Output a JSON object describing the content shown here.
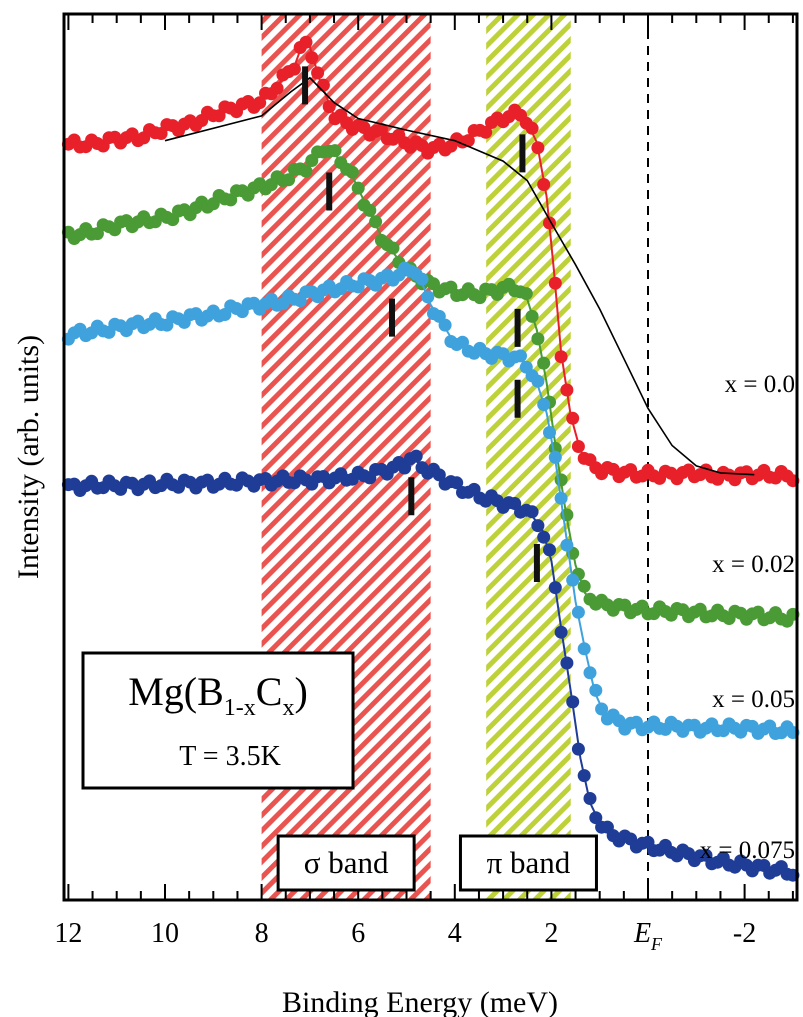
{
  "chart_data": {
    "type": "scatter",
    "xlabel": "Binding Energy (meV)",
    "ylabel": "Intensity (arb. units)",
    "xlim": [
      12,
      -3
    ],
    "x_reversed": true,
    "ylim": [
      0,
      1
    ],
    "grid": false,
    "xtick_labels": [
      {
        "x": 12,
        "label": "12"
      },
      {
        "x": 10,
        "label": "10"
      },
      {
        "x": 8,
        "label": "8"
      },
      {
        "x": 6,
        "label": "6"
      },
      {
        "x": 4,
        "label": "4"
      },
      {
        "x": 2,
        "label": "2"
      },
      {
        "x": 0,
        "label": "E",
        "sub": "F"
      },
      {
        "x": -2,
        "label": "-2"
      }
    ],
    "fermi_level": 0,
    "bands": [
      {
        "label": "σ band",
        "x_from": 8.0,
        "x_to": 4.5,
        "color": "#e8413c"
      },
      {
        "label": "π band",
        "x_from": 3.35,
        "x_to": 1.6,
        "color": "#b7cc22"
      }
    ],
    "series": [
      {
        "name": "x = 0.0",
        "color": "#e8202a",
        "points": [
          [
            12.0,
            0.853
          ],
          [
            11.5,
            0.853
          ],
          [
            11.0,
            0.859
          ],
          [
            10.5,
            0.861
          ],
          [
            10.0,
            0.871
          ],
          [
            9.5,
            0.875
          ],
          [
            9.0,
            0.887
          ],
          [
            8.5,
            0.895
          ],
          [
            8.0,
            0.901
          ],
          [
            7.6,
            0.924
          ],
          [
            7.3,
            0.944
          ],
          [
            7.15,
            0.967
          ],
          [
            7.0,
            0.963
          ],
          [
            6.8,
            0.926
          ],
          [
            6.5,
            0.885
          ],
          [
            6.0,
            0.871
          ],
          [
            5.5,
            0.865
          ],
          [
            5.0,
            0.855
          ],
          [
            4.5,
            0.847
          ],
          [
            4.0,
            0.853
          ],
          [
            3.5,
            0.867
          ],
          [
            3.0,
            0.883
          ],
          [
            2.6,
            0.889
          ],
          [
            2.3,
            0.855
          ],
          [
            2.1,
            0.794
          ],
          [
            1.95,
            0.712
          ],
          [
            1.8,
            0.618
          ],
          [
            1.6,
            0.547
          ],
          [
            1.4,
            0.507
          ],
          [
            1.2,
            0.492
          ],
          [
            1.0,
            0.486
          ],
          [
            0.5,
            0.482
          ],
          [
            0.0,
            0.48
          ],
          [
            -0.5,
            0.48
          ],
          [
            -1.0,
            0.482
          ],
          [
            -1.5,
            0.478
          ],
          [
            -2.0,
            0.48
          ],
          [
            -2.5,
            0.48
          ],
          [
            -3.0,
            0.478
          ]
        ],
        "markers": [
          7.1,
          2.6
        ]
      },
      {
        "name": "x = 0.02",
        "color": "#4a9a35",
        "points": [
          [
            12.0,
            0.75
          ],
          [
            11.5,
            0.754
          ],
          [
            11.0,
            0.762
          ],
          [
            10.5,
            0.766
          ],
          [
            10.0,
            0.77
          ],
          [
            9.5,
            0.778
          ],
          [
            9.0,
            0.788
          ],
          [
            8.5,
            0.797
          ],
          [
            8.0,
            0.805
          ],
          [
            7.5,
            0.815
          ],
          [
            7.0,
            0.83
          ],
          [
            6.7,
            0.85
          ],
          [
            6.5,
            0.842
          ],
          [
            6.2,
            0.826
          ],
          [
            5.8,
            0.78
          ],
          [
            5.5,
            0.747
          ],
          [
            5.0,
            0.711
          ],
          [
            4.5,
            0.694
          ],
          [
            4.0,
            0.686
          ],
          [
            3.5,
            0.684
          ],
          [
            3.0,
            0.69
          ],
          [
            2.7,
            0.692
          ],
          [
            2.5,
            0.678
          ],
          [
            2.3,
            0.643
          ],
          [
            2.1,
            0.584
          ],
          [
            1.9,
            0.507
          ],
          [
            1.7,
            0.437
          ],
          [
            1.5,
            0.378
          ],
          [
            1.3,
            0.346
          ],
          [
            1.0,
            0.334
          ],
          [
            0.5,
            0.33
          ],
          [
            0.0,
            0.326
          ],
          [
            -0.5,
            0.326
          ],
          [
            -1.0,
            0.324
          ],
          [
            -1.5,
            0.322
          ],
          [
            -2.0,
            0.322
          ],
          [
            -2.5,
            0.32
          ],
          [
            -3.0,
            0.318
          ]
        ],
        "markers": [
          6.6,
          2.7
        ]
      },
      {
        "name": "x = 0.05",
        "color": "#3fa2dc",
        "points": [
          [
            12.0,
            0.638
          ],
          [
            11.5,
            0.642
          ],
          [
            11.0,
            0.646
          ],
          [
            10.5,
            0.65
          ],
          [
            10.0,
            0.652
          ],
          [
            9.5,
            0.658
          ],
          [
            9.0,
            0.66
          ],
          [
            8.5,
            0.668
          ],
          [
            8.0,
            0.672
          ],
          [
            7.5,
            0.676
          ],
          [
            7.0,
            0.684
          ],
          [
            6.5,
            0.69
          ],
          [
            6.0,
            0.696
          ],
          [
            5.5,
            0.7
          ],
          [
            5.0,
            0.709
          ],
          [
            4.85,
            0.715
          ],
          [
            4.7,
            0.699
          ],
          [
            4.5,
            0.672
          ],
          [
            4.0,
            0.628
          ],
          [
            3.5,
            0.618
          ],
          [
            3.0,
            0.614
          ],
          [
            2.7,
            0.612
          ],
          [
            2.5,
            0.604
          ],
          [
            2.3,
            0.584
          ],
          [
            2.1,
            0.55
          ],
          [
            1.9,
            0.49
          ],
          [
            1.7,
            0.413
          ],
          [
            1.5,
            0.337
          ],
          [
            1.3,
            0.282
          ],
          [
            1.1,
            0.234
          ],
          [
            0.9,
            0.21
          ],
          [
            0.5,
            0.198
          ],
          [
            0.0,
            0.196
          ],
          [
            -0.5,
            0.196
          ],
          [
            -1.0,
            0.194
          ],
          [
            -1.5,
            0.194
          ],
          [
            -2.0,
            0.194
          ],
          [
            -2.5,
            0.192
          ],
          [
            -3.0,
            0.19
          ]
        ],
        "markers": [
          5.3,
          2.7
        ]
      },
      {
        "name": "x = 0.075",
        "color": "#1f3d96",
        "points": [
          [
            12.0,
            0.466
          ],
          [
            11.5,
            0.468
          ],
          [
            11.0,
            0.468
          ],
          [
            10.5,
            0.468
          ],
          [
            10.0,
            0.47
          ],
          [
            9.5,
            0.47
          ],
          [
            9.0,
            0.47
          ],
          [
            8.5,
            0.472
          ],
          [
            8.0,
            0.472
          ],
          [
            7.5,
            0.474
          ],
          [
            7.0,
            0.474
          ],
          [
            6.5,
            0.476
          ],
          [
            6.0,
            0.478
          ],
          [
            5.5,
            0.484
          ],
          [
            5.0,
            0.492
          ],
          [
            4.9,
            0.502
          ],
          [
            4.7,
            0.49
          ],
          [
            4.5,
            0.484
          ],
          [
            4.0,
            0.468
          ],
          [
            3.5,
            0.456
          ],
          [
            3.0,
            0.448
          ],
          [
            2.5,
            0.44
          ],
          [
            2.2,
            0.42
          ],
          [
            2.0,
            0.383
          ],
          [
            1.8,
            0.307
          ],
          [
            1.6,
            0.236
          ],
          [
            1.4,
            0.16
          ],
          [
            1.2,
            0.11
          ],
          [
            1.0,
            0.087
          ],
          [
            0.8,
            0.075
          ],
          [
            0.5,
            0.069
          ],
          [
            0.0,
            0.061
          ],
          [
            -0.5,
            0.055
          ],
          [
            -1.0,
            0.049
          ],
          [
            -1.5,
            0.043
          ],
          [
            -2.0,
            0.039
          ],
          [
            -2.5,
            0.035
          ],
          [
            -3.0,
            0.031
          ]
        ],
        "markers": [
          4.9,
          2.3
        ]
      }
    ],
    "reference_line": {
      "color": "#000000",
      "points": [
        [
          10.0,
          0.857
        ],
        [
          8.0,
          0.885
        ],
        [
          7.4,
          0.912
        ],
        [
          7.0,
          0.928
        ],
        [
          6.5,
          0.9
        ],
        [
          6.0,
          0.882
        ],
        [
          5.0,
          0.869
        ],
        [
          4.0,
          0.857
        ],
        [
          3.0,
          0.834
        ],
        [
          2.5,
          0.812
        ],
        [
          2.0,
          0.764
        ],
        [
          1.5,
          0.717
        ],
        [
          1.0,
          0.667
        ],
        [
          0.5,
          0.611
        ],
        [
          0.0,
          0.555
        ],
        [
          -0.5,
          0.513
        ],
        [
          -1.0,
          0.49
        ],
        [
          -1.5,
          0.482
        ],
        [
          -2.2,
          0.48
        ]
      ]
    },
    "labels": {
      "compound": {
        "main": "Mg(B",
        "sub1": "1-x",
        "mid": "C",
        "sub2": "x",
        "end": ")"
      },
      "temperature": "T = 3.5K"
    }
  }
}
